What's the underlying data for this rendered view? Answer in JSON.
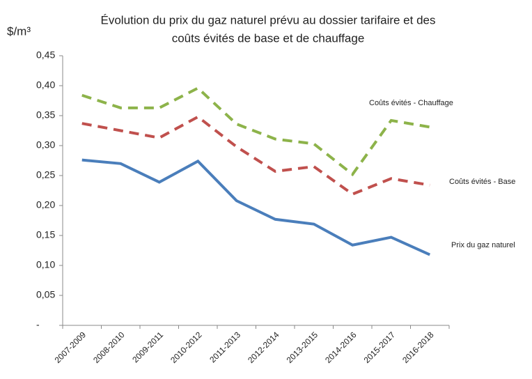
{
  "chart_data": {
    "type": "line",
    "title": [
      "Évolution du prix du gaz naturel prévu au dossier tarifaire et des",
      "coûts évités de base et de chauffage"
    ],
    "y_label": "$/m³",
    "categories": [
      "2007-2009",
      "2008-2010",
      "2009-2011",
      "2010-2012",
      "2011-2013",
      "2012-2014",
      "2013-2015",
      "2014-2016",
      "2015-2017",
      "2016-2018"
    ],
    "series": [
      {
        "name": "Prix du gaz naturel",
        "color": "#4a7ebb",
        "dash": false,
        "values": [
          0.276,
          0.27,
          0.239,
          0.274,
          0.208,
          0.177,
          0.169,
          0.134,
          0.147,
          0.118
        ]
      },
      {
        "name": "Coûts évités  - Base",
        "color": "#c0504d",
        "dash": true,
        "values": [
          0.337,
          0.325,
          0.313,
          0.348,
          0.298,
          0.257,
          0.265,
          0.219,
          0.245,
          0.234
        ]
      },
      {
        "name": "Coûts évités - Chauffage",
        "color": "#8db34a",
        "dash": true,
        "values": [
          0.384,
          0.363,
          0.363,
          0.396,
          0.336,
          0.311,
          0.303,
          0.252,
          0.342,
          0.331
        ]
      }
    ],
    "ylim": [
      0,
      0.45
    ],
    "yticks": [
      {
        "value": 0,
        "label": "-"
      },
      {
        "value": 0.05,
        "label": "0,05"
      },
      {
        "value": 0.1,
        "label": "0,10"
      },
      {
        "value": 0.15,
        "label": "0,15"
      },
      {
        "value": 0.2,
        "label": "0,20"
      },
      {
        "value": 0.25,
        "label": "0,25"
      },
      {
        "value": 0.3,
        "label": "0,30"
      },
      {
        "value": 0.35,
        "label": "0,35"
      },
      {
        "value": 0.4,
        "label": "0,40"
      },
      {
        "value": 0.45,
        "label": "0,45"
      }
    ],
    "grid": false
  }
}
